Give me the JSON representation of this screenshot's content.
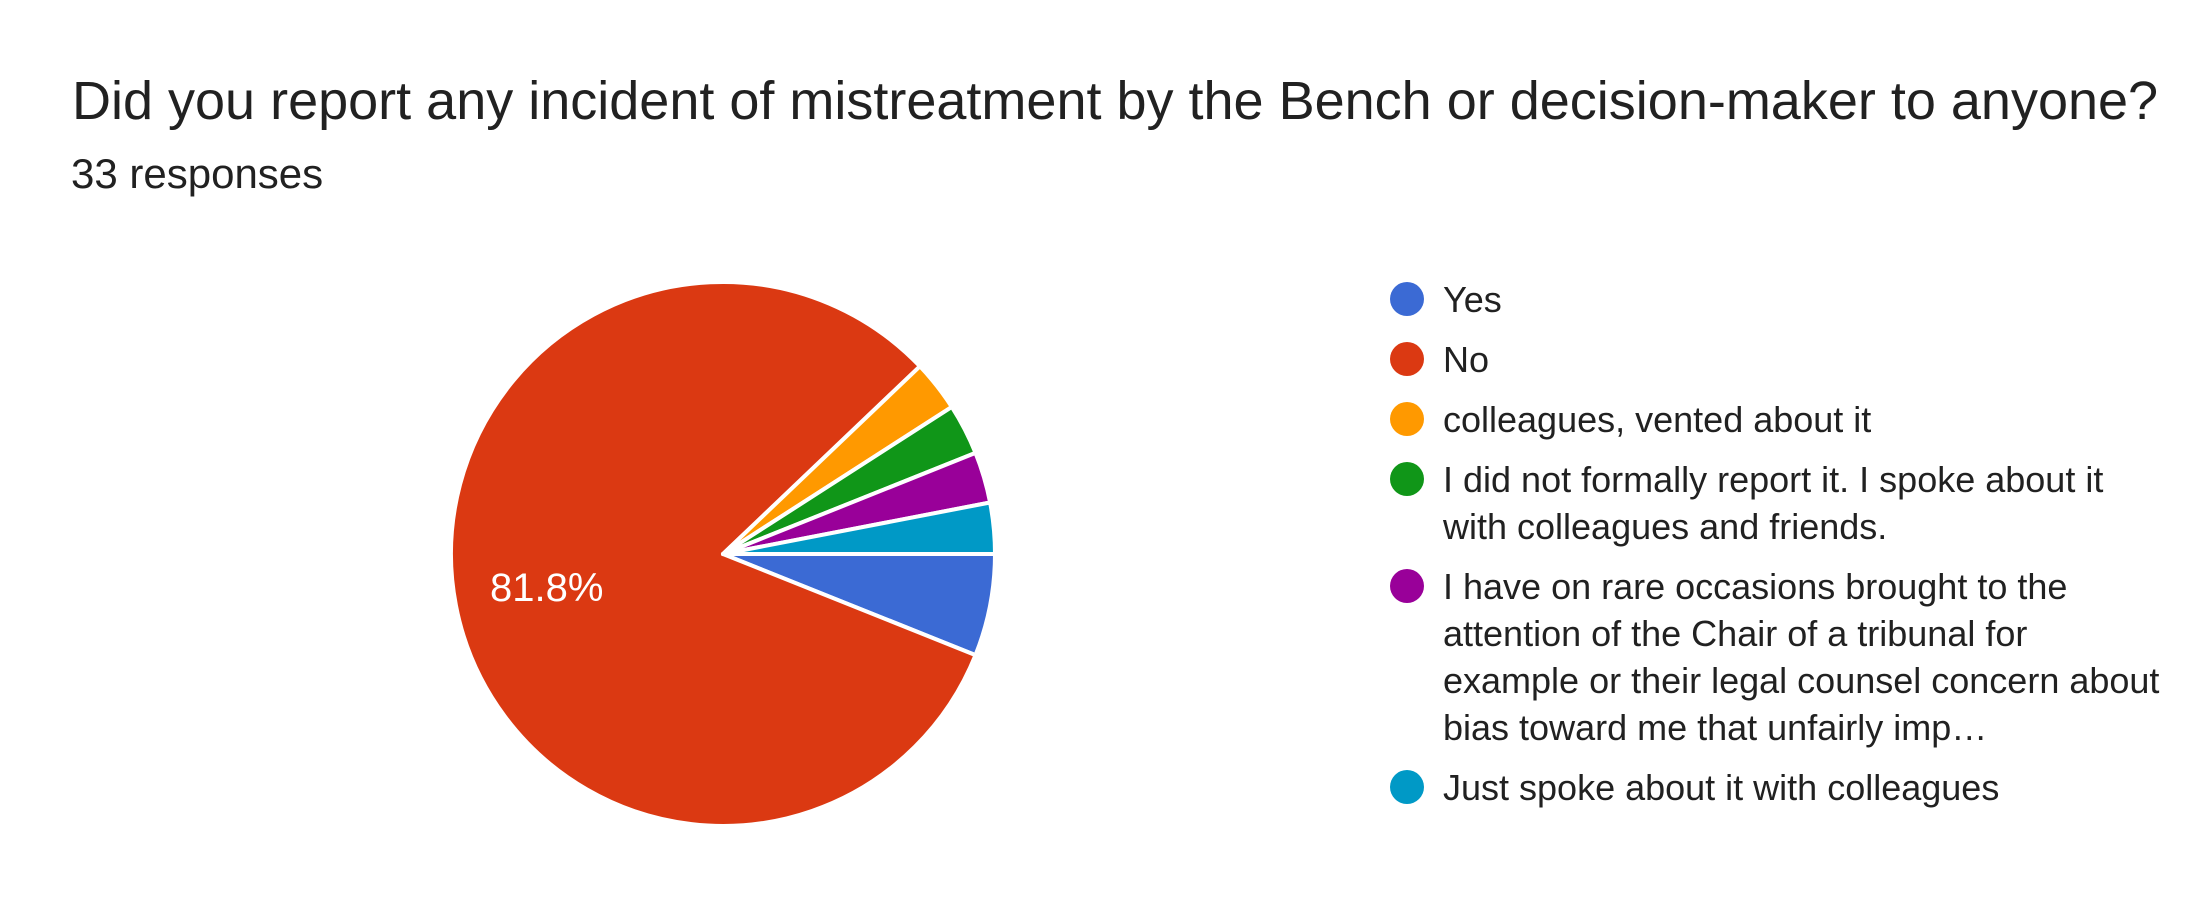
{
  "header": {
    "title": "Did you report any incident of mistreatment by the Bench or decision-maker to anyone?",
    "responses": "33 responses"
  },
  "chart_data": {
    "type": "pie",
    "title": "Did you report any incident of mistreatment by the Bench or decision-maker to anyone?",
    "subtitle": "33 responses",
    "responses_total": 33,
    "legend_position": "right",
    "start_angle_deg": 0,
    "direction": "clockwise",
    "slices": [
      {
        "label": "Yes",
        "value": 2,
        "pct": 6.1,
        "pct_label": "",
        "color": "#3B6AD4"
      },
      {
        "label": "No",
        "value": 27,
        "pct": 81.8,
        "pct_label": "81.8%",
        "color": "#DB3912"
      },
      {
        "label": "colleagues, vented about it",
        "value": 1,
        "pct": 3.0,
        "pct_label": "",
        "color": "#FF9900"
      },
      {
        "label": "I did not formally report it. I spoke about it with colleagues and friends.",
        "value": 1,
        "pct": 3.0,
        "pct_label": "",
        "color": "#109618"
      },
      {
        "label": "I have on rare occasions brought to the attention of the Chair of a tribunal for example or their legal counsel concern about bias toward me that unfairly imp…",
        "value": 1,
        "pct": 3.0,
        "pct_label": "",
        "color": "#990099"
      },
      {
        "label": "Just spoke about it with colleagues",
        "value": 1,
        "pct": 3.0,
        "pct_label": "",
        "color": "#0099C6"
      }
    ]
  },
  "colors": {
    "background": "#FFFFFF",
    "text": "#212121",
    "slice_label": "#FFFFFF",
    "slice_border": "#FFFFFF"
  }
}
